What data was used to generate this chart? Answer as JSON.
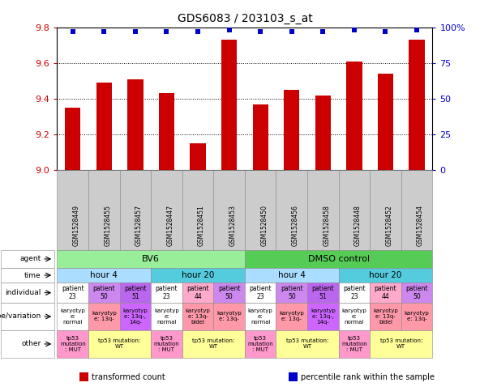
{
  "title": "GDS6083 / 203103_s_at",
  "samples": [
    "GSM1528449",
    "GSM1528455",
    "GSM1528457",
    "GSM1528447",
    "GSM1528451",
    "GSM1528453",
    "GSM1528450",
    "GSM1528456",
    "GSM1528458",
    "GSM1528448",
    "GSM1528452",
    "GSM1528454"
  ],
  "bar_values": [
    9.35,
    9.49,
    9.51,
    9.43,
    9.15,
    9.73,
    9.37,
    9.45,
    9.42,
    9.61,
    9.54,
    9.73
  ],
  "scatter_values": [
    97,
    97,
    97,
    97,
    97,
    98,
    97,
    97,
    97,
    98,
    97,
    98
  ],
  "ylim_left": [
    9.0,
    9.8
  ],
  "ylim_right": [
    0,
    100
  ],
  "yticks_left": [
    9.0,
    9.2,
    9.4,
    9.6,
    9.8
  ],
  "yticks_right": [
    0,
    25,
    50,
    75,
    100
  ],
  "bar_color": "#cc0000",
  "scatter_color": "#0000cc",
  "bg_color": "#ffffff",
  "agent_cells": [
    {
      "text": "BV6",
      "span": 6,
      "color": "#99ee99"
    },
    {
      "text": "DMSO control",
      "span": 6,
      "color": "#55cc55"
    }
  ],
  "time_cells": [
    {
      "text": "hour 4",
      "span": 3,
      "color": "#aaddff"
    },
    {
      "text": "hour 20",
      "span": 3,
      "color": "#55ccdd"
    },
    {
      "text": "hour 4",
      "span": 3,
      "color": "#aaddff"
    },
    {
      "text": "hour 20",
      "span": 3,
      "color": "#55ccdd"
    }
  ],
  "individual_cells": [
    {
      "text": "patient\n23",
      "color": "#ffffff"
    },
    {
      "text": "patient\n50",
      "color": "#cc88ee"
    },
    {
      "text": "patient\n51",
      "color": "#bb66ee"
    },
    {
      "text": "patient\n23",
      "color": "#ffffff"
    },
    {
      "text": "patient\n44",
      "color": "#ffaacc"
    },
    {
      "text": "patient\n50",
      "color": "#cc88ee"
    },
    {
      "text": "patient\n23",
      "color": "#ffffff"
    },
    {
      "text": "patient\n50",
      "color": "#cc88ee"
    },
    {
      "text": "patient\n51",
      "color": "#bb66ee"
    },
    {
      "text": "patient\n23",
      "color": "#ffffff"
    },
    {
      "text": "patient\n44",
      "color": "#ffaacc"
    },
    {
      "text": "patient\n50",
      "color": "#cc88ee"
    }
  ],
  "genotype_cells": [
    {
      "text": "karyotyp\ne:\nnormal",
      "color": "#ffffff"
    },
    {
      "text": "karyotyp\ne: 13q-",
      "color": "#ff99aa"
    },
    {
      "text": "karyotyp\ne: 13q-,\n14q-",
      "color": "#cc66ff"
    },
    {
      "text": "karyotyp\ne:\nnormal",
      "color": "#ffffff"
    },
    {
      "text": "karyotyp\ne: 13q-\nbidel",
      "color": "#ff99aa"
    },
    {
      "text": "karyotyp\ne: 13q-",
      "color": "#ff99aa"
    },
    {
      "text": "karyotyp\ne:\nnormal",
      "color": "#ffffff"
    },
    {
      "text": "karyotyp\ne: 13q-",
      "color": "#ff99aa"
    },
    {
      "text": "karyotyp\ne: 13q-,\n14q-",
      "color": "#cc66ff"
    },
    {
      "text": "karyotyp\ne:\nnormal",
      "color": "#ffffff"
    },
    {
      "text": "karyotyp\ne: 13q-\nbidel",
      "color": "#ff99aa"
    },
    {
      "text": "karyotyp\ne: 13q-",
      "color": "#ff99aa"
    }
  ],
  "other_cells": [
    {
      "text": "tp53\nmutation\n: MUT",
      "color": "#ff99cc",
      "span": 1
    },
    {
      "text": "tp53 mutation:\nWT",
      "color": "#ffff99",
      "span": 2
    },
    {
      "text": "tp53\nmutation\n: MUT",
      "color": "#ff99cc",
      "span": 1
    },
    {
      "text": "tp53 mutation:\nWT",
      "color": "#ffff99",
      "span": 2
    },
    {
      "text": "tp53\nmutation\n: MUT",
      "color": "#ff99cc",
      "span": 1
    },
    {
      "text": "tp53 mutation:\nWT",
      "color": "#ffff99",
      "span": 2
    },
    {
      "text": "tp53\nmutation\n: MUT",
      "color": "#ff99cc",
      "span": 1
    },
    {
      "text": "tp53 mutation:\nWT",
      "color": "#ffff99",
      "span": 2
    }
  ],
  "row_labels": [
    "agent",
    "time",
    "individual",
    "genotype/variation",
    "other"
  ],
  "legend": [
    {
      "label": "transformed count",
      "color": "#cc0000"
    },
    {
      "label": "percentile rank within the sample",
      "color": "#0000cc"
    }
  ]
}
